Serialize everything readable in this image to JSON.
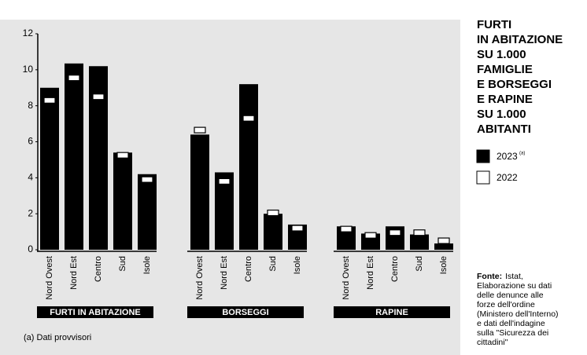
{
  "chart_data": {
    "type": "bar_marker",
    "title": [
      "FURTI",
      "IN ABITAZIONE",
      "SU 1.000",
      "FAMIGLIE",
      "E BORSEGGI",
      "E RAPINE",
      "SU 1.000",
      "ABITANTI"
    ],
    "groups": [
      "FURTI IN ABITAZIONE",
      "BORSEGGI",
      "RAPINE"
    ],
    "categories": [
      [
        "Nord Ovest",
        "Nord Est",
        "Centro",
        "Sud",
        "Isole"
      ],
      [
        "Nord Ovest",
        "Nord Est",
        "Centro",
        "Sud",
        "Isole"
      ],
      [
        "Nord Ovest",
        "Nord Est",
        "Centro",
        "Sud",
        "Isole"
      ]
    ],
    "series": [
      {
        "name": "2023",
        "note": "(a)",
        "color": "#000000",
        "values": [
          [
            9.0,
            10.35,
            10.2,
            5.4,
            4.2
          ],
          [
            6.4,
            4.3,
            9.2,
            2.0,
            1.4
          ],
          [
            1.3,
            0.9,
            1.3,
            0.85,
            0.35
          ]
        ]
      },
      {
        "name": "2022",
        "color": "#ffffff",
        "values": [
          [
            8.3,
            9.55,
            8.5,
            5.25,
            3.9
          ],
          [
            6.65,
            3.8,
            7.3,
            2.05,
            1.2
          ],
          [
            1.15,
            0.8,
            0.95,
            0.95,
            0.5
          ]
        ]
      }
    ],
    "ylim": [
      0,
      12
    ],
    "yticks": [
      0,
      2,
      4,
      6,
      8,
      10,
      12
    ],
    "footnote": "(a) Dati provvisori",
    "source": {
      "label": "Fonte:",
      "lines": [
        "Istat,",
        "Elaborazione su dati",
        "delle denunce alle",
        "forze dell'ordine",
        "(Ministero dell'Interno)",
        "e dati dell'indagine",
        "sulla \"Sicurezza dei",
        "cittadini\""
      ]
    }
  }
}
